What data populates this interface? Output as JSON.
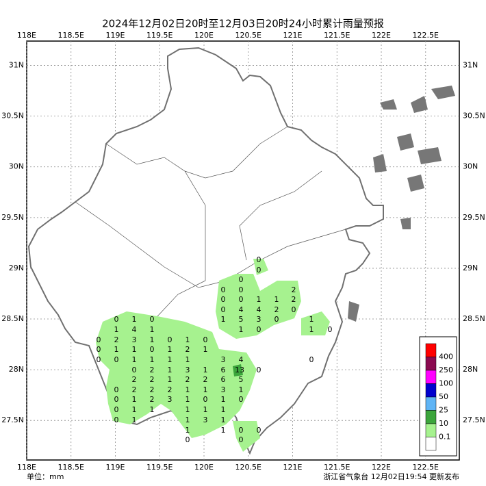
{
  "title": "2024年12月02日20时至12月03日20时24小时累计雨量预报",
  "xlim": [
    118,
    122.88
  ],
  "ylim": [
    27.11,
    31.24
  ],
  "xticks": [
    {
      "value": 118,
      "label": "118E"
    },
    {
      "value": 118.5,
      "label": "118.5E"
    },
    {
      "value": 119,
      "label": "119E"
    },
    {
      "value": 119.5,
      "label": "119.5E"
    },
    {
      "value": 120,
      "label": "120E"
    },
    {
      "value": 120.5,
      "label": "120.5E"
    },
    {
      "value": 121,
      "label": "121E"
    },
    {
      "value": 121.5,
      "label": "121.5E"
    },
    {
      "value": 122,
      "label": "122E"
    },
    {
      "value": 122.5,
      "label": "122.5E"
    }
  ],
  "yticks": [
    {
      "value": 31,
      "label": "31N"
    },
    {
      "value": 30.5,
      "label": "30.5N"
    },
    {
      "value": 30,
      "label": "30N"
    },
    {
      "value": 29.5,
      "label": "29.5N"
    },
    {
      "value": 29,
      "label": "29N"
    },
    {
      "value": 28.5,
      "label": "28.5N"
    },
    {
      "value": 28,
      "label": "28N"
    },
    {
      "value": 27.5,
      "label": "27.5N"
    }
  ],
  "legend": [
    {
      "label": "400",
      "color": "#ff0000"
    },
    {
      "label": "250",
      "color": "#8b0a50"
    },
    {
      "label": "100",
      "color": "#ff00ff"
    },
    {
      "label": "50",
      "color": "#0000cd"
    },
    {
      "label": "25",
      "color": "#5fb4f5"
    },
    {
      "label": "10",
      "color": "#3ca53c"
    },
    {
      "label": "0.1",
      "color": "#a6f28f"
    }
  ],
  "unit": "单位：mm",
  "footer": "浙江省气象台 12月02日19:54 更新发布",
  "stations": [
    0,
    0,
    0,
    0,
    0,
    2,
    0,
    0,
    1,
    1,
    2,
    0,
    4,
    4,
    2,
    0,
    0,
    1,
    0,
    1,
    5,
    3,
    0,
    1,
    1,
    4,
    1,
    1,
    0,
    1,
    0,
    0,
    2,
    3,
    1,
    0,
    1,
    0,
    0,
    1,
    1,
    0,
    1,
    2,
    1,
    0,
    0,
    1,
    1,
    1,
    1,
    3,
    4,
    0,
    0,
    2,
    1,
    3,
    1,
    6,
    13,
    0,
    2,
    2,
    1,
    2,
    2,
    6,
    5,
    0,
    2,
    2,
    2,
    1,
    1,
    3,
    1,
    0,
    1,
    2,
    3,
    1,
    0,
    1,
    0,
    0,
    1,
    1,
    1,
    1,
    1,
    0,
    1,
    1,
    3,
    1,
    1,
    1,
    0,
    0,
    0,
    0
  ]
}
